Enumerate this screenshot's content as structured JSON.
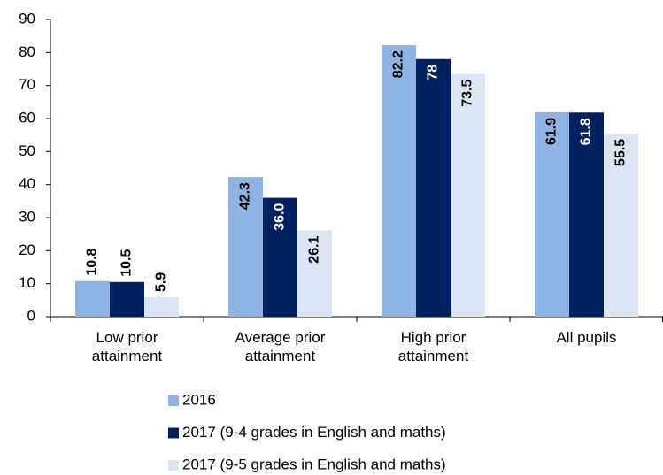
{
  "chart_data": {
    "type": "bar",
    "categories": [
      "Low prior attainment",
      "Average prior attainment",
      "High prior attainment",
      "All pupils"
    ],
    "series": [
      {
        "name": "2016",
        "color": "#8eb4e3",
        "values": [
          10.8,
          42.3,
          82.2,
          61.9
        ]
      },
      {
        "name": "2017 (9-4 grades in English and maths)",
        "color": "#002060",
        "values": [
          10.5,
          36,
          78,
          61.8
        ],
        "value_labels": [
          "10.5",
          "36.0",
          "78",
          "61.8"
        ]
      },
      {
        "name": "2017 (9-5 grades in English and maths)",
        "color": "#dce6f2",
        "values": [
          5.9,
          26.1,
          73.5,
          55.5
        ]
      }
    ],
    "ylim": [
      0,
      90
    ],
    "yticks": [
      0,
      10,
      20,
      30,
      40,
      50,
      60,
      70,
      80,
      90
    ],
    "legend": "bottom-left"
  }
}
